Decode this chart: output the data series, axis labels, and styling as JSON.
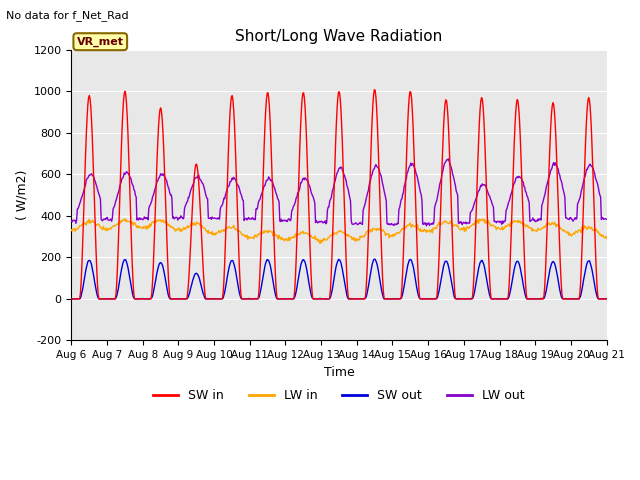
{
  "title": "Short/Long Wave Radiation",
  "top_left_text": "No data for f_Net_Rad",
  "ylabel": "( W/m2)",
  "xlabel": "Time",
  "ylim": [
    -200,
    1200
  ],
  "yticks": [
    -200,
    0,
    200,
    400,
    600,
    800,
    1000,
    1200
  ],
  "x_tick_labels": [
    "Aug 6",
    "Aug 7",
    "Aug 8",
    "Aug 9",
    "Aug 10",
    "Aug 11",
    "Aug 12",
    "Aug 13",
    "Aug 14",
    "Aug 15",
    "Aug 16",
    "Aug 17",
    "Aug 18",
    "Aug 19",
    "Aug 20",
    "Aug 21"
  ],
  "legend_entries": [
    "SW in",
    "LW in",
    "SW out",
    "LW out"
  ],
  "legend_colors": [
    "#ff0000",
    "#ffa500",
    "#0000dd",
    "#8800cc"
  ],
  "colors": {
    "SW_in": "#ff0000",
    "LW_in": "#ffa500",
    "SW_out": "#0000dd",
    "LW_out": "#8800cc"
  },
  "box_label": "VR_met",
  "fig_bg_color": "#ffffff",
  "plot_bg_color": "#e8e8e8",
  "grid_color": "#ffffff",
  "figsize": [
    6.4,
    4.8
  ],
  "dpi": 100,
  "n_days": 15,
  "SW_in_peaks": [
    980,
    1000,
    920,
    650,
    980,
    995,
    995,
    1000,
    1010,
    1000,
    960,
    970,
    960,
    945,
    970
  ],
  "LW_out_peaks": [
    600,
    610,
    600,
    590,
    580,
    580,
    580,
    630,
    640,
    650,
    670,
    550,
    590,
    650,
    645
  ],
  "LW_in_base": 330,
  "LW_in_variation": 30,
  "SW_out_albedo": 0.19
}
